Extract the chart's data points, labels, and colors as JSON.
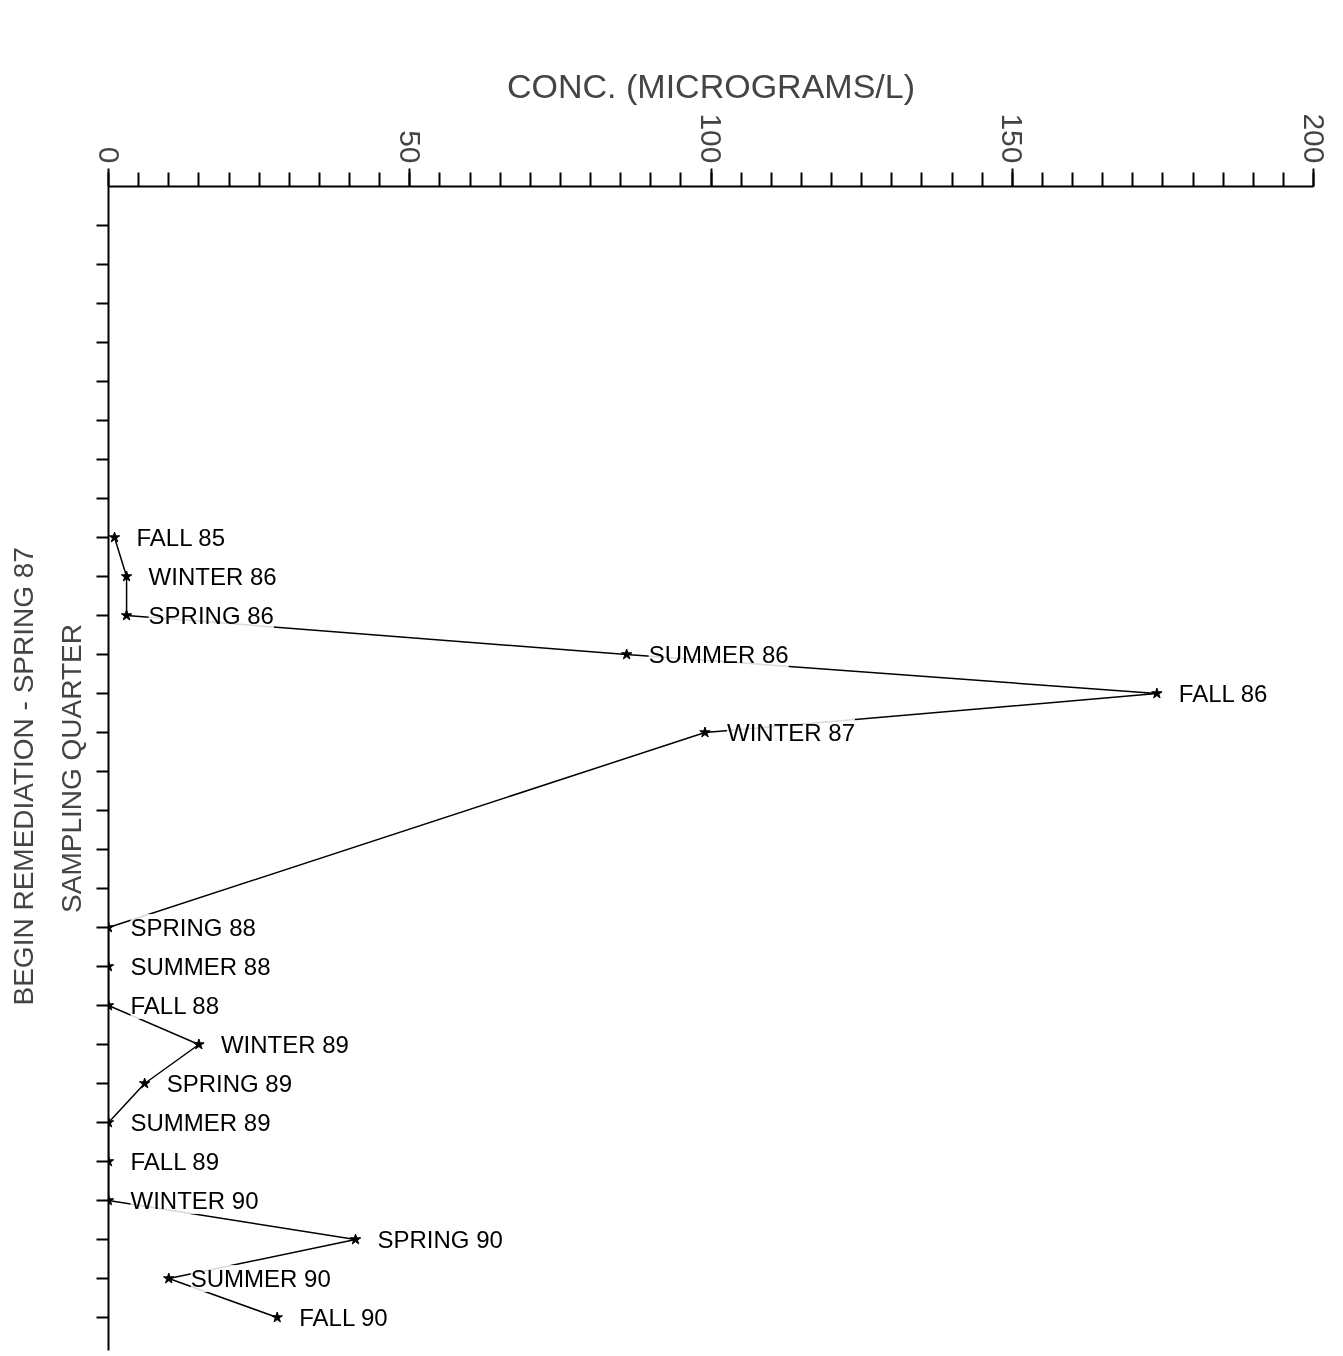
{
  "chart_data": {
    "type": "line",
    "orientation": "horizontal",
    "xlabel": "CONC. (MICROGRAMS/L)",
    "ylabel": "SAMPLING QUARTER",
    "annotations": [
      "BEGIN REMEDIATION  -  SPRING 87"
    ],
    "categories": [
      null,
      null,
      null,
      null,
      null,
      null,
      null,
      null,
      "FALL 85",
      "WINTER 86",
      "SPRING 86",
      "SUMMER 86",
      "FALL 86",
      "WINTER 87",
      null,
      null,
      null,
      null,
      "SPRING 88",
      "SUMMER 88",
      "FALL 88",
      "WINTER 89",
      "SPRING 89",
      "SUMMER 89",
      "FALL 89",
      "WINTER 90",
      "SPRING 90",
      "SUMMER 90",
      "FALL 90"
    ],
    "values": [
      null,
      null,
      null,
      null,
      null,
      null,
      null,
      null,
      1,
      3,
      3,
      86,
      174,
      99,
      null,
      null,
      null,
      null,
      0,
      0,
      0,
      15,
      6,
      0,
      0,
      0,
      41,
      10,
      28
    ],
    "color": "#000000",
    "marker": "star",
    "line_style": "solid",
    "xlim": [
      0,
      200
    ],
    "xticks": [
      0,
      50,
      100,
      150,
      200
    ],
    "grid": false
  }
}
